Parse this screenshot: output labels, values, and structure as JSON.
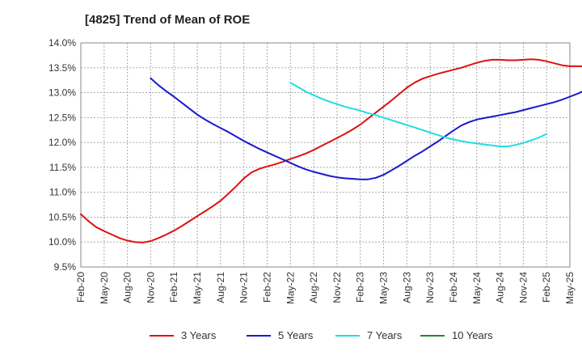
{
  "chart_data": {
    "type": "line",
    "title": "[4825]  Trend of Mean of ROE",
    "xlabel": "",
    "ylabel": "",
    "x_ticks": [
      "Feb-20",
      "May-20",
      "Aug-20",
      "Nov-20",
      "Feb-21",
      "May-21",
      "Aug-21",
      "Nov-21",
      "Feb-22",
      "May-22",
      "Aug-22",
      "Nov-22",
      "Feb-23",
      "May-23",
      "Aug-23",
      "Nov-23",
      "Feb-24",
      "May-24",
      "Aug-24",
      "Nov-24",
      "Feb-25",
      "May-25"
    ],
    "y_ticks": [
      "9.5%",
      "10.0%",
      "10.5%",
      "11.0%",
      "11.5%",
      "12.0%",
      "12.5%",
      "13.0%",
      "13.5%",
      "14.0%"
    ],
    "ylim": [
      9.5,
      14.0
    ],
    "grid": true,
    "legend_position": "bottom",
    "series": [
      {
        "name": "3 Years",
        "color": "#dd1111",
        "start_index": 0,
        "values": [
          10.56,
          10.42,
          10.3,
          10.22,
          10.15,
          10.08,
          10.03,
          10.0,
          9.99,
          10.02,
          10.08,
          10.15,
          10.23,
          10.32,
          10.42,
          10.52,
          10.62,
          10.72,
          10.83,
          10.97,
          11.12,
          11.28,
          11.4,
          11.47,
          11.52,
          11.56,
          11.61,
          11.67,
          11.72,
          11.78,
          11.85,
          11.93,
          12.01,
          12.09,
          12.17,
          12.26,
          12.36,
          12.48,
          12.6,
          12.72,
          12.84,
          12.97,
          13.1,
          13.2,
          13.28,
          13.33,
          13.38,
          13.42,
          13.46,
          13.5,
          13.55,
          13.6,
          13.64,
          13.66,
          13.66,
          13.65,
          13.65,
          13.66,
          13.67,
          13.66,
          13.63,
          13.59,
          13.55,
          13.53,
          13.53,
          13.53,
          13.54,
          13.55
        ]
      },
      {
        "name": "5 Years",
        "color": "#1a1acc",
        "start_index": 9,
        "values": [
          13.29,
          13.15,
          13.03,
          12.92,
          12.8,
          12.68,
          12.56,
          12.46,
          12.37,
          12.29,
          12.21,
          12.12,
          12.03,
          11.95,
          11.87,
          11.8,
          11.73,
          11.66,
          11.59,
          11.52,
          11.46,
          11.41,
          11.37,
          11.33,
          11.3,
          11.28,
          11.27,
          11.26,
          11.26,
          11.29,
          11.35,
          11.44,
          11.53,
          11.63,
          11.73,
          11.82,
          11.92,
          12.02,
          12.13,
          12.24,
          12.34,
          12.41,
          12.46,
          12.49,
          12.52,
          12.55,
          12.58,
          12.61,
          12.65,
          12.69,
          12.73,
          12.77,
          12.81,
          12.86,
          12.92,
          12.98,
          13.05,
          13.12,
          13.18
        ]
      },
      {
        "name": "7 Years",
        "color": "#22dddd",
        "start_index": 27,
        "values": [
          13.2,
          13.11,
          13.02,
          12.95,
          12.88,
          12.82,
          12.77,
          12.72,
          12.68,
          12.64,
          12.59,
          12.55,
          12.5,
          12.45,
          12.4,
          12.35,
          12.3,
          12.25,
          12.2,
          12.15,
          12.1,
          12.06,
          12.03,
          12.0,
          11.98,
          11.96,
          11.94,
          11.92,
          11.92,
          11.95,
          11.99,
          12.04,
          12.1,
          12.17
        ]
      },
      {
        "name": "10 Years",
        "color": "#228822",
        "start_index": 0,
        "values": []
      }
    ]
  }
}
